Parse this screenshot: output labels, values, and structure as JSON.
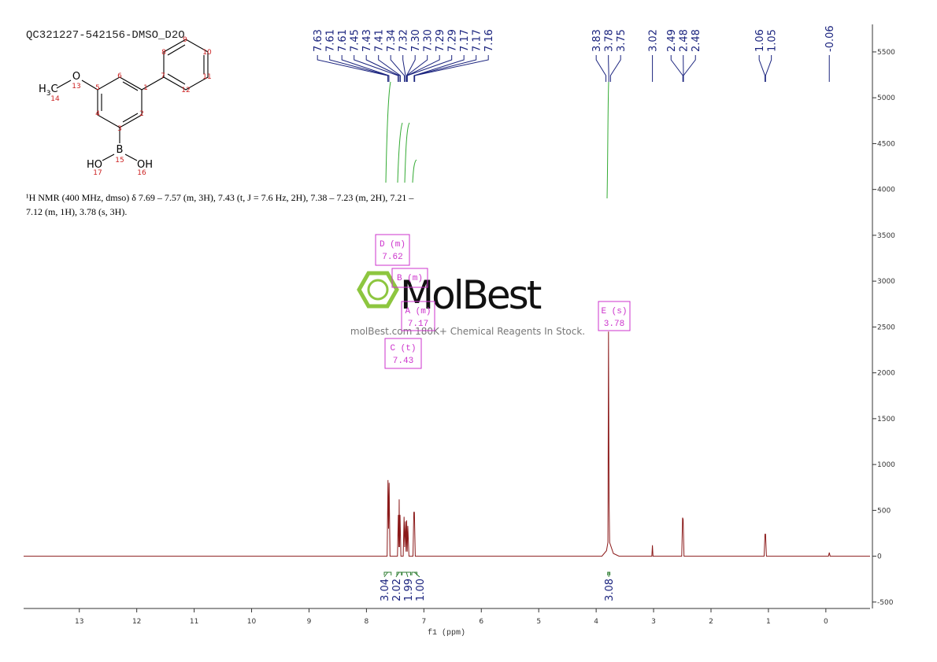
{
  "chart_data": {
    "type": "nmr",
    "title": "QC321227-542156-DMSO_D2O",
    "description": [
      "¹H NMR (400 MHz, dmso) δ 7.69 – 7.57 (m, 3H), 7.43 (t, J = 7.6 Hz, 2H), 7.38 – 7.23 (m, 2H), 7.21 –",
      "7.12 (m, 1H), 3.78 (s, 3H)."
    ],
    "x_label": "f1 (ppm)",
    "xlim": [
      13.97,
      -0.77
    ],
    "xticks": [
      13,
      12,
      11,
      10,
      9,
      8,
      7,
      6,
      5,
      4,
      3,
      2,
      1,
      0
    ],
    "ylim": [
      -570,
      5800
    ],
    "yticks": [
      -500,
      0,
      500,
      1000,
      1500,
      2000,
      2500,
      3000,
      3500,
      4000,
      4500,
      5000,
      5500
    ],
    "series": [
      {
        "color": "#8b1a1a",
        "x": [
          13.97,
          7.7,
          7.64,
          7.625,
          7.615,
          7.605,
          7.59,
          7.46,
          7.445,
          7.435,
          7.43,
          7.425,
          7.415,
          7.4,
          7.36,
          7.345,
          7.335,
          7.32,
          7.31,
          7.3,
          7.29,
          7.28,
          7.26,
          7.19,
          7.175,
          7.165,
          7.15,
          3.9,
          3.82,
          3.795,
          3.785,
          3.775,
          3.765,
          3.7,
          3.6,
          3.03,
          3.02,
          3.01,
          2.51,
          2.495,
          2.485,
          2.47,
          1.075,
          1.06,
          1.05,
          1.035,
          -0.045,
          -0.06,
          -0.075,
          -0.77
        ],
        "values": [
          0,
          0,
          0,
          830,
          300,
          800,
          0,
          0,
          450,
          100,
          620,
          100,
          450,
          0,
          0,
          430,
          100,
          380,
          50,
          390,
          50,
          330,
          0,
          0,
          480,
          480,
          0,
          0,
          60,
          150,
          2450,
          600,
          150,
          30,
          0,
          0,
          120,
          0,
          0,
          420,
          400,
          0,
          0,
          240,
          240,
          0,
          0,
          40,
          0,
          0
        ]
      }
    ],
    "peak_labels": [
      7.63,
      7.61,
      7.61,
      7.45,
      7.43,
      7.41,
      7.34,
      7.32,
      {
        "value": 7.3,
        "label": "7.30"
      },
      {
        "value": 7.3,
        "label": "7.30"
      },
      7.29,
      7.29,
      7.17,
      7.17,
      7.16,
      3.83,
      3.78,
      3.75,
      3.02,
      2.49,
      2.48,
      2.48,
      1.06,
      1.05,
      -0.06
    ],
    "peak_label_color": "#1a237e",
    "integrals": {
      "values": [
        3.04,
        2.02,
        1.99,
        1,
        3.08
      ],
      "value_labels": [
        "3.04",
        "2.02",
        "1.99",
        "1.00",
        "3.08"
      ],
      "ranges": [
        [
          7.69,
          7.57
        ],
        [
          7.47,
          7.39
        ],
        [
          7.38,
          7.23
        ],
        [
          7.21,
          7.12
        ],
        [
          3.8,
          3.76
        ]
      ],
      "color": "#2e7d32"
    },
    "multiplets": [
      {
        "label": "D (m)",
        "shift": 7.62
      },
      {
        "label": "B (m)"
      },
      {
        "label": "A (m)",
        "shift": 7.17
      },
      {
        "label": "C (t)",
        "shift": 7.43
      },
      {
        "label": "E (s)",
        "shift": 3.78
      }
    ],
    "multiplet_color": "#cc33cc",
    "molecule": {
      "atoms": [
        "O",
        "B",
        "HO",
        "OH"
      ],
      "methyl": {
        "main": "H",
        "sub": "3",
        "tail": "C"
      },
      "atom_numbers": [
        1,
        2,
        3,
        4,
        5,
        6,
        7,
        8,
        9,
        10,
        11,
        12,
        13,
        14,
        15,
        16,
        17
      ]
    },
    "watermark": {
      "logo": "MolBest",
      "tagline": "molBest.com 180K+ Chemical Reagents In Stock."
    }
  }
}
